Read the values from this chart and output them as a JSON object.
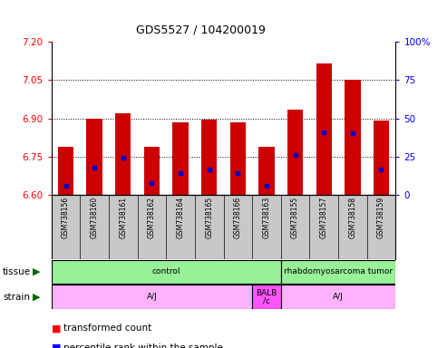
{
  "title": "GDS5527 / 104200019",
  "samples": [
    "GSM738156",
    "GSM738160",
    "GSM738161",
    "GSM738162",
    "GSM738164",
    "GSM738165",
    "GSM738166",
    "GSM738163",
    "GSM738155",
    "GSM738157",
    "GSM738158",
    "GSM738159"
  ],
  "bar_values": [
    6.79,
    6.9,
    6.92,
    6.79,
    6.885,
    6.895,
    6.885,
    6.79,
    6.935,
    7.115,
    7.05,
    6.89
  ],
  "blue_dot_values": [
    6.635,
    6.705,
    6.745,
    6.645,
    6.685,
    6.7,
    6.685,
    6.635,
    6.755,
    6.845,
    6.84,
    6.7
  ],
  "ylim": [
    6.6,
    7.2
  ],
  "yticks_left": [
    6.6,
    6.75,
    6.9,
    7.05,
    7.2
  ],
  "yticks_right": [
    0,
    25,
    50,
    75,
    100
  ],
  "right_ylim": [
    0,
    100
  ],
  "bar_color": "#CC0000",
  "dot_color": "#0000CC",
  "background_color": "#FFFFFF",
  "bar_bottom": 6.6,
  "label_bg": "#C8C8C8",
  "tissue_control_color": "#98F098",
  "tissue_tumor_color": "#98F098",
  "strain_aj_color": "#FFB3FF",
  "strain_balb_color": "#FF55FF"
}
